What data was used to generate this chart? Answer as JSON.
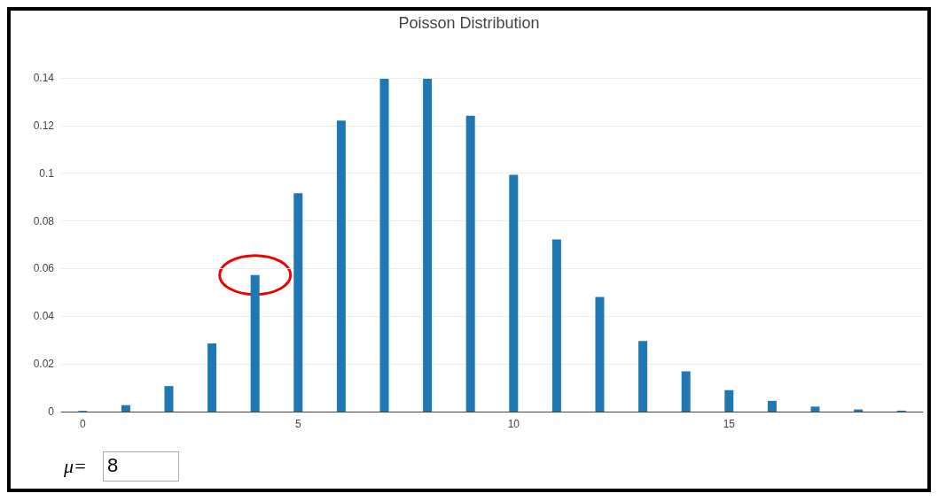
{
  "chart_data": {
    "type": "bar",
    "title": "Poisson Distribution",
    "x": [
      0,
      1,
      2,
      3,
      4,
      5,
      6,
      7,
      8,
      9,
      10,
      11,
      12,
      13,
      14,
      15,
      16,
      17,
      18,
      19
    ],
    "values": [
      0.0003,
      0.0027,
      0.0107,
      0.0286,
      0.0573,
      0.0916,
      0.1221,
      0.1396,
      0.1396,
      0.1241,
      0.0993,
      0.0722,
      0.0481,
      0.0296,
      0.0169,
      0.009,
      0.0045,
      0.0021,
      0.0009,
      0.0004
    ],
    "color": "#1f77b4",
    "xlim": [
      -0.5,
      19.5
    ],
    "xticks": [
      0,
      5,
      10,
      15
    ],
    "ylim": [
      0,
      0.14
    ],
    "yticks": [
      0,
      0.02,
      0.04,
      0.06,
      0.08,
      0.1,
      0.12,
      0.14
    ],
    "grid": "y",
    "annotations": [
      "μ=",
      "8"
    ]
  }
}
